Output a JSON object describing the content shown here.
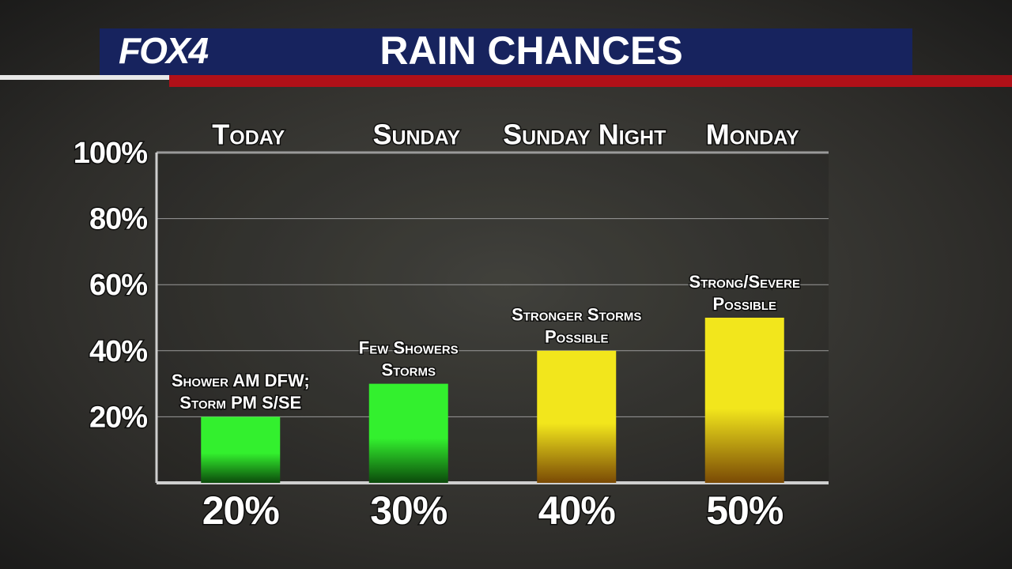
{
  "brand": "FOX4",
  "chart_data": {
    "type": "bar",
    "title": "RAIN CHANCES",
    "categories": [
      "Today",
      "Sunday",
      "Sunday Night",
      "Monday"
    ],
    "values": [
      20,
      30,
      40,
      50
    ],
    "value_labels": [
      "20%",
      "30%",
      "40%",
      "50%"
    ],
    "annotations": [
      [
        "Shower AM DFW;",
        "Storm PM S/SE"
      ],
      [
        "Few Showers",
        "Storms"
      ],
      [
        "Stronger Storms",
        "Possible"
      ],
      [
        "Strong/Severe",
        "Possible"
      ]
    ],
    "colors": [
      "#33f02e",
      "#33f02e",
      "#f2e61c",
      "#f2e61c"
    ],
    "ylim": [
      0,
      100
    ],
    "yticks": [
      {
        "value": 20,
        "label": "20%"
      },
      {
        "value": 40,
        "label": "40%"
      },
      {
        "value": 60,
        "label": "60%"
      },
      {
        "value": 80,
        "label": "80%"
      },
      {
        "value": 100,
        "label": "100%"
      }
    ],
    "grid": true
  }
}
